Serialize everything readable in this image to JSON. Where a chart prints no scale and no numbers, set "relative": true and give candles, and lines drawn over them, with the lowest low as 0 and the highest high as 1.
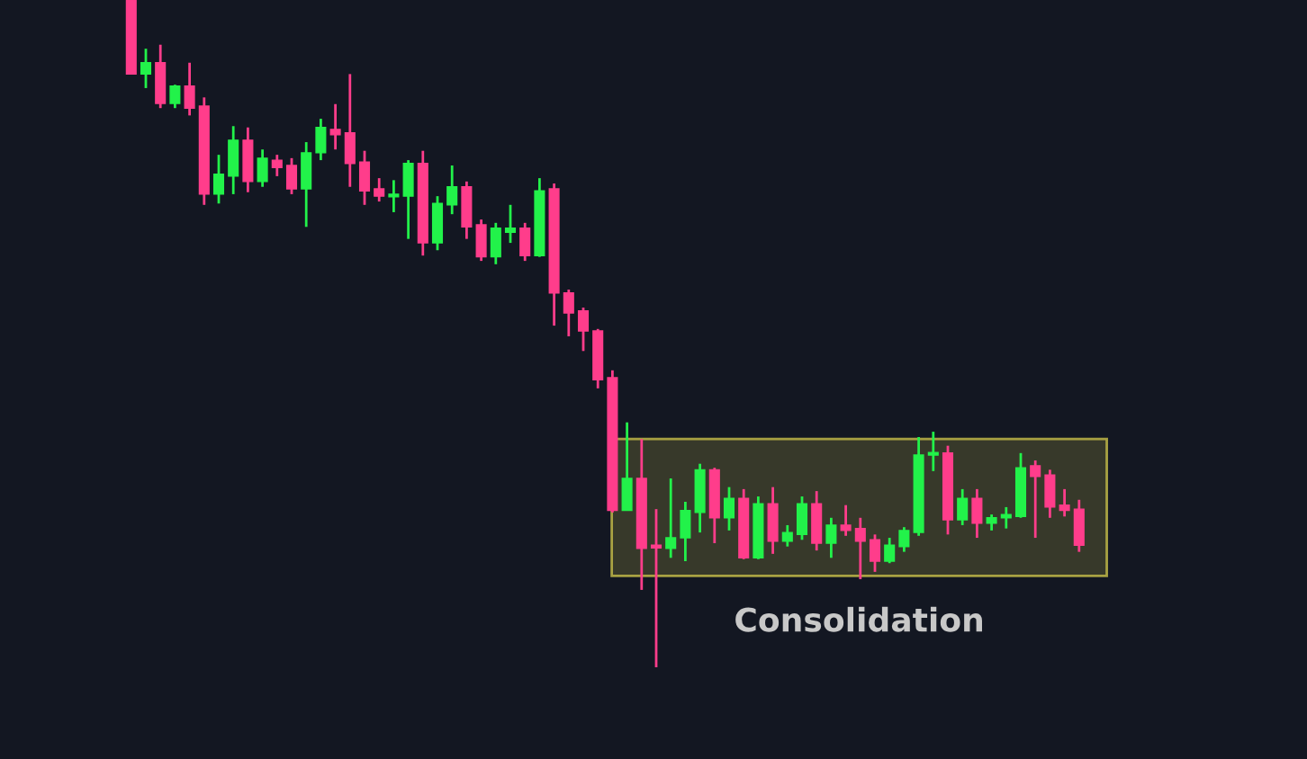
{
  "chart_data": {
    "type": "candlestick",
    "relative": true,
    "categories": [
      null,
      null,
      null,
      null,
      null,
      null,
      null,
      null,
      null,
      null,
      null,
      null,
      null,
      null,
      null,
      null,
      null,
      null,
      null,
      null,
      null,
      null,
      null,
      null,
      null,
      null,
      null,
      null,
      null,
      null,
      null,
      null,
      null,
      null,
      null,
      null,
      null,
      null,
      null,
      null,
      null,
      null,
      null,
      null,
      null,
      null,
      null,
      null,
      null,
      null,
      null,
      null,
      null,
      null,
      null,
      null,
      null,
      null,
      null,
      null,
      null,
      null,
      null,
      null,
      null,
      null
    ],
    "ohlc": [
      [
        1.0,
        1.0,
        0.889,
        0.889
      ],
      [
        0.889,
        0.927,
        0.868,
        0.906
      ],
      [
        0.906,
        0.933,
        0.838,
        0.845
      ],
      [
        0.845,
        0.873,
        0.838,
        0.871
      ],
      [
        0.871,
        0.906,
        0.827,
        0.838
      ],
      [
        0.841,
        0.854,
        0.693,
        0.709
      ],
      [
        0.709,
        0.768,
        0.695,
        0.739
      ],
      [
        0.736,
        0.811,
        0.709,
        0.79
      ],
      [
        0.79,
        0.809,
        0.712,
        0.728
      ],
      [
        0.728,
        0.776,
        0.72,
        0.763
      ],
      [
        0.76,
        0.768,
        0.736,
        0.749
      ],
      [
        0.752,
        0.763,
        0.709,
        0.717
      ],
      [
        0.717,
        0.787,
        0.66,
        0.771
      ],
      [
        0.771,
        0.822,
        0.76,
        0.809
      ],
      [
        0.806,
        0.844,
        0.776,
        0.798
      ],
      [
        0.801,
        0.889,
        0.72,
        0.755
      ],
      [
        0.757,
        0.774,
        0.693,
        0.714
      ],
      [
        0.717,
        0.733,
        0.698,
        0.706
      ],
      [
        0.705,
        0.73,
        0.682,
        0.707
      ],
      [
        0.706,
        0.76,
        0.642,
        0.755
      ],
      [
        0.755,
        0.774,
        0.617,
        0.636
      ],
      [
        0.636,
        0.706,
        0.625,
        0.695
      ],
      [
        0.693,
        0.752,
        0.679,
        0.72
      ],
      [
        0.72,
        0.728,
        0.642,
        0.66
      ],
      [
        0.663,
        0.671,
        0.609,
        0.615
      ],
      [
        0.615,
        0.666,
        0.604,
        0.658
      ],
      [
        0.652,
        0.693,
        0.636,
        0.658
      ],
      [
        0.658,
        0.666,
        0.609,
        0.617
      ],
      [
        0.617,
        0.733,
        0.615,
        0.714
      ],
      [
        0.717,
        0.725,
        0.512,
        0.561
      ],
      [
        0.561,
        0.566,
        0.496,
        0.531
      ],
      [
        0.534,
        0.539,
        0.474,
        0.504
      ],
      [
        0.504,
        0.507,
        0.418,
        0.431
      ],
      [
        0.434,
        0.445,
        0.232,
        0.235
      ],
      [
        0.235,
        0.367,
        0.235,
        0.283
      ],
      [
        0.283,
        0.342,
        0.116,
        0.178
      ],
      [
        0.183,
        0.237,
        0.0,
        0.179
      ],
      [
        0.178,
        0.283,
        0.164,
        0.194
      ],
      [
        0.194,
        0.248,
        0.159,
        0.235
      ],
      [
        0.232,
        0.305,
        0.202,
        0.296
      ],
      [
        0.296,
        0.299,
        0.186,
        0.224
      ],
      [
        0.224,
        0.27,
        0.205,
        0.253
      ],
      [
        0.253,
        0.267,
        0.162,
        0.164
      ],
      [
        0.164,
        0.256,
        0.162,
        0.245
      ],
      [
        0.245,
        0.27,
        0.17,
        0.189
      ],
      [
        0.189,
        0.213,
        0.181,
        0.202
      ],
      [
        0.199,
        0.256,
        0.191,
        0.245
      ],
      [
        0.245,
        0.264,
        0.175,
        0.186
      ],
      [
        0.186,
        0.224,
        0.164,
        0.213
      ],
      [
        0.213,
        0.243,
        0.197,
        0.205
      ],
      [
        0.208,
        0.224,
        0.132,
        0.189
      ],
      [
        0.191,
        0.199,
        0.143,
        0.159
      ],
      [
        0.159,
        0.194,
        0.156,
        0.183
      ],
      [
        0.181,
        0.21,
        0.173,
        0.205
      ],
      [
        0.202,
        0.345,
        0.197,
        0.318
      ],
      [
        0.318,
        0.353,
        0.294,
        0.321
      ],
      [
        0.321,
        0.332,
        0.199,
        0.221
      ],
      [
        0.221,
        0.267,
        0.213,
        0.253
      ],
      [
        0.253,
        0.267,
        0.194,
        0.216
      ],
      [
        0.216,
        0.229,
        0.205,
        0.224
      ],
      [
        0.224,
        0.24,
        0.208,
        0.229
      ],
      [
        0.226,
        0.321,
        0.224,
        0.299
      ],
      [
        0.302,
        0.31,
        0.194,
        0.286
      ],
      [
        0.288,
        0.296,
        0.224,
        0.24
      ],
      [
        0.243,
        0.267,
        0.226,
        0.235
      ],
      [
        0.237,
        0.251,
        0.173,
        0.183
      ]
    ],
    "colors": [
      "#ff3d8b",
      "#22f24a",
      "#ff3d8b",
      "#22f24a",
      "#ff3d8b",
      "#ff3d8b",
      "#22f24a",
      "#22f24a",
      "#ff3d8b",
      "#22f24a",
      "#ff3d8b",
      "#ff3d8b",
      "#22f24a",
      "#22f24a",
      "#ff3d8b",
      "#ff3d8b",
      "#ff3d8b",
      "#ff3d8b",
      "#22f24a",
      "#22f24a",
      "#ff3d8b",
      "#22f24a",
      "#22f24a",
      "#ff3d8b",
      "#ff3d8b",
      "#22f24a",
      "#22f24a",
      "#ff3d8b",
      "#22f24a",
      "#ff3d8b",
      "#ff3d8b",
      "#ff3d8b",
      "#ff3d8b",
      "#ff3d8b",
      "#22f24a",
      "#ff3d8b",
      "#ff3d8b",
      "#22f24a",
      "#22f24a",
      "#22f24a",
      "#ff3d8b",
      "#22f24a",
      "#ff3d8b",
      "#22f24a",
      "#ff3d8b",
      "#22f24a",
      "#22f24a",
      "#ff3d8b",
      "#22f24a",
      "#ff3d8b",
      "#ff3d8b",
      "#ff3d8b",
      "#22f24a",
      "#22f24a",
      "#22f24a",
      "#22f24a",
      "#ff3d8b",
      "#22f24a",
      "#ff3d8b",
      "#22f24a",
      "#22f24a",
      "#22f24a",
      "#ff3d8b",
      "#ff3d8b",
      "#ff3d8b",
      "#ff3d8b"
    ],
    "bands": [
      {
        "axis": "y",
        "from": 0.137,
        "to": 0.342,
        "color": "#c9c14a"
      }
    ],
    "annotations": [
      "Consolidation"
    ]
  }
}
